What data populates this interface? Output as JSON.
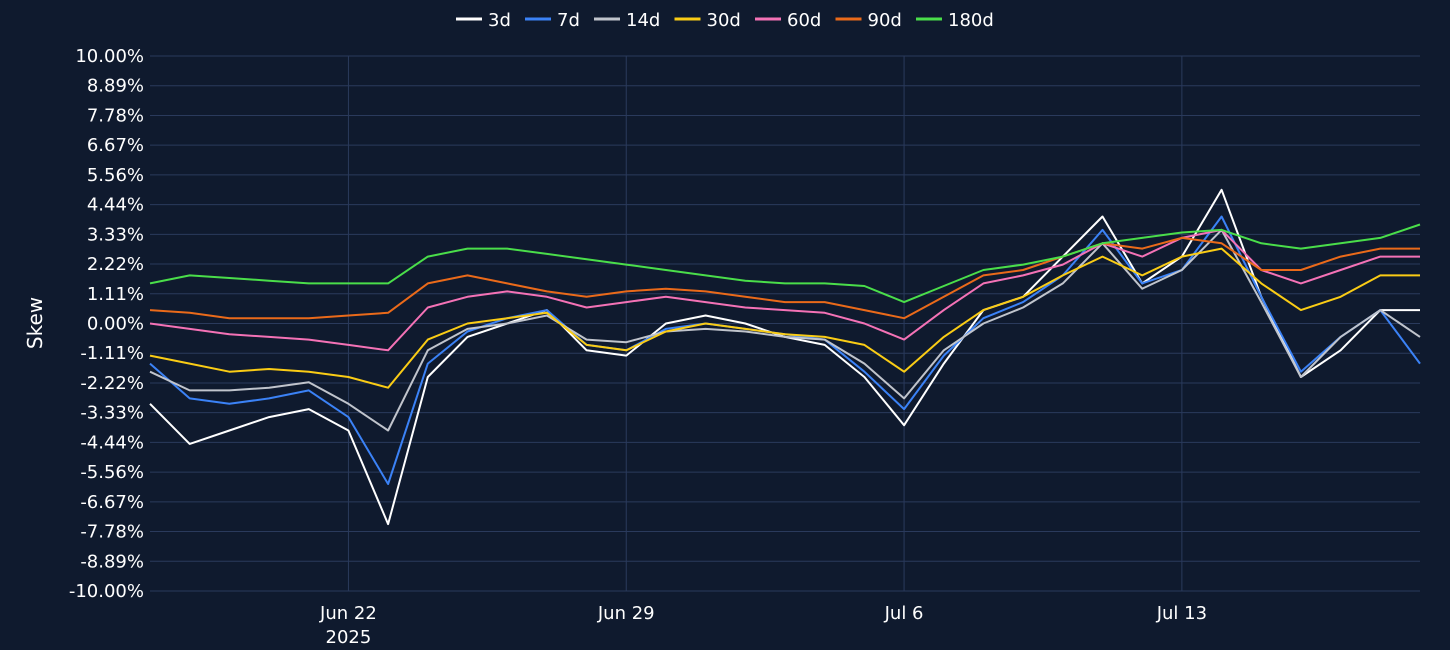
{
  "chart_data": {
    "type": "line",
    "ylabel": "Skew",
    "y_unit": "%",
    "ylim": [
      -10,
      10
    ],
    "y_ticks": [
      "10.00%",
      "8.89%",
      "7.78%",
      "6.67%",
      "5.56%",
      "4.44%",
      "3.33%",
      "2.22%",
      "1.11%",
      "0.00%",
      "-1.11%",
      "-2.22%",
      "-3.33%",
      "-4.44%",
      "-5.56%",
      "-6.67%",
      "-7.78%",
      "-8.89%",
      "-10.00%"
    ],
    "x_range": [
      "2025-06-17",
      "2025-07-19"
    ],
    "x_ticks": [
      {
        "date": "2025-06-22",
        "label": "Jun 22",
        "sublabel": "2025"
      },
      {
        "date": "2025-06-29",
        "label": "Jun 29",
        "sublabel": ""
      },
      {
        "date": "2025-07-06",
        "label": "Jul 6",
        "sublabel": ""
      },
      {
        "date": "2025-07-13",
        "label": "Jul 13",
        "sublabel": ""
      }
    ],
    "grid": true,
    "legend_position": "top-center",
    "background_color": "#0f1a2e",
    "grid_color": "#2a3a5c",
    "x": [
      "2025-06-17",
      "2025-06-18",
      "2025-06-19",
      "2025-06-20",
      "2025-06-21",
      "2025-06-22",
      "2025-06-23",
      "2025-06-24",
      "2025-06-25",
      "2025-06-26",
      "2025-06-27",
      "2025-06-28",
      "2025-06-29",
      "2025-06-30",
      "2025-07-01",
      "2025-07-02",
      "2025-07-03",
      "2025-07-04",
      "2025-07-05",
      "2025-07-06",
      "2025-07-07",
      "2025-07-08",
      "2025-07-09",
      "2025-07-10",
      "2025-07-11",
      "2025-07-12",
      "2025-07-13",
      "2025-07-14",
      "2025-07-15",
      "2025-07-16",
      "2025-07-17",
      "2025-07-18",
      "2025-07-19"
    ],
    "series": [
      {
        "name": "3d",
        "color": "#ffffff",
        "values": [
          -3.0,
          -4.5,
          -4.0,
          -3.5,
          -3.2,
          -4.0,
          -7.5,
          -2.0,
          -0.5,
          0.0,
          0.5,
          -1.0,
          -1.2,
          0.0,
          0.3,
          0.0,
          -0.5,
          -0.8,
          -2.0,
          -3.8,
          -1.5,
          0.5,
          1.0,
          2.5,
          4.0,
          1.5,
          2.5,
          5.0,
          1.0,
          -2.0,
          -1.0,
          0.5,
          0.5
        ]
      },
      {
        "name": "7d",
        "color": "#3b82f6",
        "values": [
          -1.5,
          -2.8,
          -3.0,
          -2.8,
          -2.5,
          -3.5,
          -6.0,
          -1.5,
          -0.3,
          0.2,
          0.5,
          -0.8,
          -1.0,
          -0.2,
          0.0,
          -0.2,
          -0.4,
          -0.6,
          -1.8,
          -3.2,
          -1.2,
          0.2,
          0.8,
          1.8,
          3.5,
          1.5,
          2.0,
          4.0,
          1.0,
          -1.8,
          -0.5,
          0.5,
          -1.5
        ]
      },
      {
        "name": "14d",
        "color": "#c0c4cc",
        "values": [
          -1.8,
          -2.5,
          -2.5,
          -2.4,
          -2.2,
          -3.0,
          -4.0,
          -1.0,
          -0.2,
          0.0,
          0.3,
          -0.6,
          -0.7,
          -0.3,
          -0.2,
          -0.3,
          -0.5,
          -0.6,
          -1.5,
          -2.8,
          -1.0,
          0.0,
          0.6,
          1.5,
          3.0,
          1.3,
          2.0,
          3.5,
          0.8,
          -2.0,
          -0.5,
          0.5,
          -0.5
        ]
      },
      {
        "name": "30d",
        "color": "#facc15",
        "values": [
          -1.2,
          -1.5,
          -1.8,
          -1.7,
          -1.8,
          -2.0,
          -2.4,
          -0.6,
          0.0,
          0.2,
          0.4,
          -0.8,
          -1.0,
          -0.3,
          0.0,
          -0.2,
          -0.4,
          -0.5,
          -0.8,
          -1.8,
          -0.5,
          0.5,
          1.0,
          1.8,
          2.5,
          1.8,
          2.5,
          2.8,
          1.5,
          0.5,
          1.0,
          1.8,
          1.8
        ]
      },
      {
        "name": "60d",
        "color": "#f472b6",
        "values": [
          0.0,
          -0.2,
          -0.4,
          -0.5,
          -0.6,
          -0.8,
          -1.0,
          0.6,
          1.0,
          1.2,
          1.0,
          0.6,
          0.8,
          1.0,
          0.8,
          0.6,
          0.5,
          0.4,
          0.0,
          -0.6,
          0.5,
          1.5,
          1.8,
          2.2,
          3.0,
          2.5,
          3.2,
          3.5,
          2.0,
          1.5,
          2.0,
          2.5,
          2.5
        ]
      },
      {
        "name": "90d",
        "color": "#ea6a1a",
        "values": [
          0.5,
          0.4,
          0.2,
          0.2,
          0.2,
          0.3,
          0.4,
          1.5,
          1.8,
          1.5,
          1.2,
          1.0,
          1.2,
          1.3,
          1.2,
          1.0,
          0.8,
          0.8,
          0.5,
          0.2,
          1.0,
          1.8,
          2.0,
          2.5,
          3.0,
          2.8,
          3.2,
          3.0,
          2.0,
          2.0,
          2.5,
          2.8,
          2.8
        ]
      },
      {
        "name": "180d",
        "color": "#4ade4a",
        "values": [
          1.5,
          1.8,
          1.7,
          1.6,
          1.5,
          1.5,
          1.5,
          2.5,
          2.8,
          2.8,
          2.6,
          2.4,
          2.2,
          2.0,
          1.8,
          1.6,
          1.5,
          1.5,
          1.4,
          0.8,
          1.4,
          2.0,
          2.2,
          2.5,
          3.0,
          3.2,
          3.4,
          3.5,
          3.0,
          2.8,
          3.0,
          3.2,
          3.7
        ]
      }
    ]
  }
}
